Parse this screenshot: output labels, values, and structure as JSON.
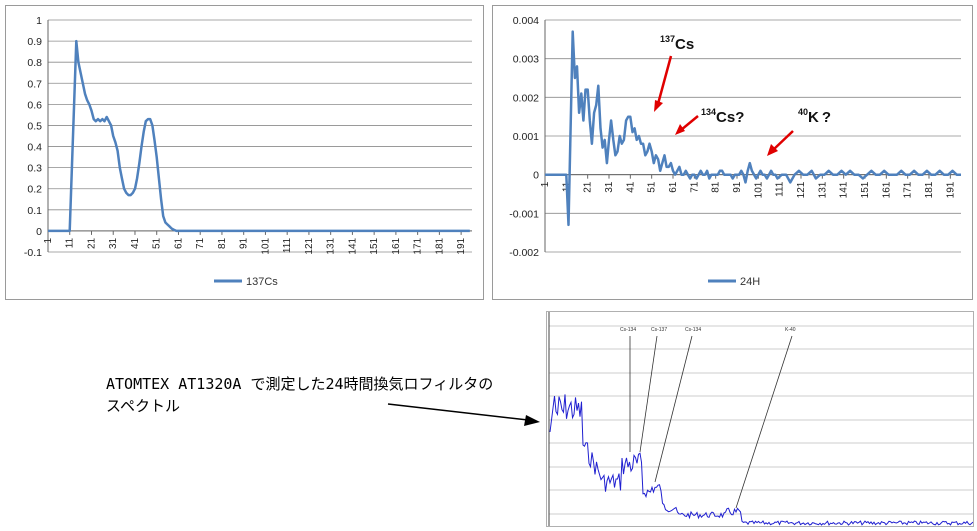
{
  "chart_data": [
    {
      "type": "line",
      "ylim": [
        -0.1,
        1
      ],
      "yticks": [
        "-0.1",
        "0",
        "0.1",
        "0.2",
        "0.3",
        "0.4",
        "0.5",
        "0.6",
        "0.7",
        "0.8",
        "0.9",
        "1"
      ],
      "categories": [
        "1",
        "11",
        "21",
        "31",
        "41",
        "51",
        "61",
        "71",
        "81",
        "91",
        "101",
        "111",
        "121",
        "131",
        "141",
        "151",
        "161",
        "171",
        "181",
        "191"
      ],
      "legend_position": "bottom",
      "series": [
        {
          "name": "137Cs",
          "color": "#4f81bd",
          "x": [
            1,
            10,
            11,
            12,
            13,
            14,
            15,
            16,
            17,
            18,
            19,
            20,
            21,
            22,
            23,
            24,
            25,
            26,
            27,
            28,
            29,
            30,
            31,
            32,
            33,
            34,
            35,
            36,
            37,
            38,
            39,
            40,
            41,
            42,
            43,
            44,
            45,
            46,
            47,
            48,
            49,
            50,
            51,
            52,
            53,
            54,
            55,
            56,
            57,
            58,
            59,
            60,
            61,
            62,
            63,
            64,
            65,
            66,
            67,
            68,
            69,
            70,
            80,
            100,
            120,
            140,
            160,
            180,
            195
          ],
          "values": [
            0,
            0,
            0,
            0.3,
            0.6,
            0.9,
            0.8,
            0.75,
            0.7,
            0.65,
            0.62,
            0.6,
            0.57,
            0.53,
            0.52,
            0.53,
            0.52,
            0.53,
            0.52,
            0.54,
            0.52,
            0.5,
            0.45,
            0.42,
            0.38,
            0.3,
            0.25,
            0.2,
            0.18,
            0.17,
            0.17,
            0.18,
            0.2,
            0.25,
            0.32,
            0.4,
            0.47,
            0.52,
            0.53,
            0.53,
            0.5,
            0.43,
            0.35,
            0.25,
            0.15,
            0.07,
            0.04,
            0.03,
            0.02,
            0.01,
            0.005,
            0,
            0,
            0,
            0,
            0,
            0,
            0,
            0,
            0,
            0,
            0,
            0,
            0,
            0,
            0,
            0,
            0,
            0
          ]
        }
      ]
    },
    {
      "type": "line",
      "ylim": [
        -0.002,
        0.004
      ],
      "yticks": [
        "-0.002",
        "-0.001",
        "0",
        "0.001",
        "0.002",
        "0.003",
        "0.004"
      ],
      "categories": [
        "1",
        "11",
        "21",
        "31",
        "41",
        "51",
        "61",
        "71",
        "81",
        "91",
        "101",
        "111",
        "121",
        "131",
        "141",
        "151",
        "161",
        "171",
        "181",
        "191"
      ],
      "legend_position": "bottom",
      "series": [
        {
          "name": "24H",
          "color": "#4f81bd",
          "x": [
            1,
            10,
            11,
            12,
            13,
            14,
            15,
            16,
            17,
            18,
            19,
            20,
            21,
            22,
            23,
            24,
            25,
            26,
            27,
            28,
            29,
            30,
            31,
            32,
            33,
            34,
            35,
            36,
            37,
            38,
            39,
            40,
            41,
            42,
            43,
            44,
            45,
            46,
            47,
            48,
            49,
            50,
            51,
            52,
            53,
            54,
            55,
            56,
            57,
            58,
            59,
            60,
            61,
            62,
            63,
            64,
            65,
            66,
            67,
            68,
            69,
            70,
            71,
            72,
            73,
            74,
            75,
            76,
            77,
            78,
            79,
            80,
            81,
            82,
            83,
            84,
            85,
            86,
            87,
            88,
            89,
            90,
            91,
            92,
            93,
            94,
            95,
            96,
            97,
            98,
            99,
            100,
            101,
            102,
            103,
            104,
            105,
            106,
            107,
            108,
            109,
            110,
            112,
            114,
            116,
            118,
            120,
            122,
            124,
            126,
            128,
            130,
            132,
            134,
            136,
            138,
            140,
            142,
            144,
            146,
            148,
            150,
            152,
            154,
            156,
            158,
            160,
            162,
            164,
            166,
            168,
            170,
            172,
            174,
            176,
            178,
            180,
            182,
            184,
            186,
            188,
            190,
            192,
            194,
            196
          ],
          "values": [
            0,
            0,
            0,
            -0.0013,
            0.0012,
            0.0037,
            0.0025,
            0.0028,
            0.0016,
            0.0021,
            0.0014,
            0.0022,
            0.0022,
            0.0014,
            0.0008,
            0.0016,
            0.0018,
            0.0023,
            0.0012,
            0.0007,
            0.0009,
            0.0003,
            0.0009,
            0.0014,
            0.0009,
            0.0005,
            0.0006,
            0.001,
            0.0008,
            0.0009,
            0.0014,
            0.0015,
            0.0015,
            0.0011,
            0.0012,
            0.0009,
            0.001,
            0.0008,
            0.0008,
            0.0005,
            0.0006,
            0.0008,
            0.0006,
            0.0003,
            0.0005,
            0.0004,
            0.0001,
            0.0003,
            0.0005,
            0.0002,
            0.0002,
            0.0003,
            0.0001,
            0,
            0.0001,
            0.0002,
            0,
            0,
            0.0001,
            0,
            -0.0001,
            0,
            0,
            -0.0001,
            0,
            0.0001,
            0,
            0,
            0.0001,
            -0.0001,
            0,
            0,
            0,
            0,
            0.0001,
            0.0001,
            0,
            0,
            0,
            0,
            -0.0001,
            0,
            0,
            0,
            0.0001,
            0,
            -0.0002,
            0.0001,
            0.0003,
            0.0001,
            0,
            -0.0001,
            0,
            0.0001,
            0,
            0,
            -0.0001,
            0,
            0.0001,
            0,
            0,
            -0.0001,
            0,
            0,
            -0.0002,
            0,
            0.0001,
            0,
            0,
            0.0001,
            -0.0001,
            0,
            0,
            0.0001,
            0,
            0,
            0.0001,
            0,
            0.0001,
            0,
            0,
            -0.0001,
            0,
            0.0001,
            0,
            0,
            0.0001,
            0,
            0,
            0,
            0.0001,
            0,
            0,
            0.0001,
            0,
            0,
            0.0001,
            0,
            0,
            0.0001,
            0,
            0,
            0.0001,
            0,
            0
          ]
        }
      ],
      "annotations": [
        {
          "mass": "137",
          "element": "Cs",
          "suffix": ""
        },
        {
          "mass": "134",
          "element": "Cs",
          "suffix": "?"
        },
        {
          "mass": "40",
          "element": "K",
          "suffix": "?"
        }
      ]
    }
  ],
  "spectrum": {
    "peak_labels": [
      "Cs-134",
      "Cs-137",
      "Cs-134",
      "K-40"
    ],
    "line_color": "#2020d0"
  },
  "caption": {
    "line1": "ATOMTEX AT1320A で測定した24時間換気ロフィルタの",
    "line2": "スペクトル"
  }
}
